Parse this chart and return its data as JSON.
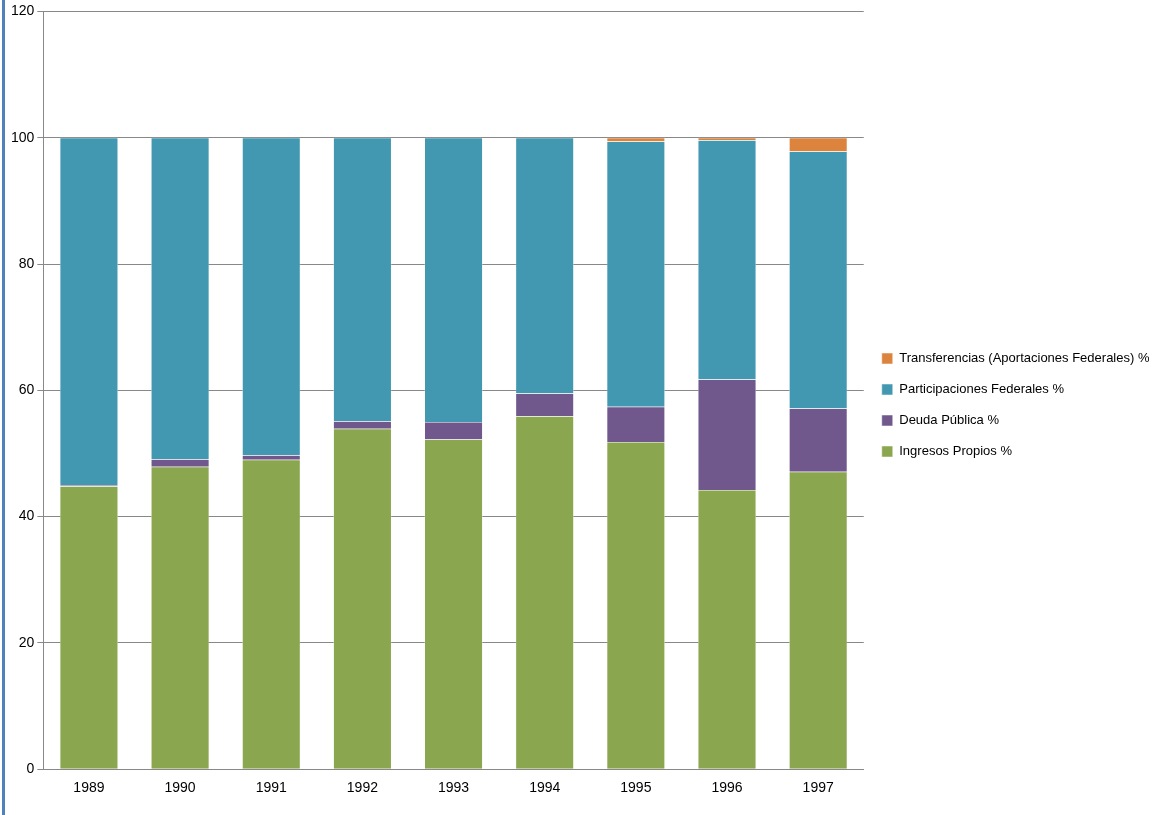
{
  "chart_data": {
    "type": "bar",
    "stacked": true,
    "categories": [
      "1989",
      "1990",
      "1991",
      "1992",
      "1993",
      "1994",
      "1995",
      "1996",
      "1997"
    ],
    "series": [
      {
        "name": "Ingresos Propios %",
        "color": "#8aa64e",
        "values": [
          44.8,
          47.9,
          49.0,
          53.9,
          52.2,
          55.9,
          51.8,
          44.2,
          47.1
        ]
      },
      {
        "name": "Deuda Pública %",
        "color": "#70588c",
        "values": [
          0.2,
          1.2,
          0.7,
          1.2,
          2.8,
          3.6,
          5.6,
          17.5,
          10.0
        ]
      },
      {
        "name": "Participaciones Federales %",
        "color": "#4298b0",
        "values": [
          55.0,
          50.9,
          50.3,
          44.9,
          45.0,
          40.5,
          42.0,
          37.9,
          40.7
        ]
      },
      {
        "name": "Transferencias (Aportaciones Federales) %",
        "color": "#dc843e",
        "values": [
          0,
          0,
          0,
          0,
          0,
          0,
          0.6,
          0.4,
          2.2
        ]
      }
    ],
    "ylim": [
      0,
      120
    ],
    "yticks": [
      0,
      20,
      40,
      60,
      80,
      100,
      120
    ],
    "grid": "y",
    "legend": "right"
  }
}
